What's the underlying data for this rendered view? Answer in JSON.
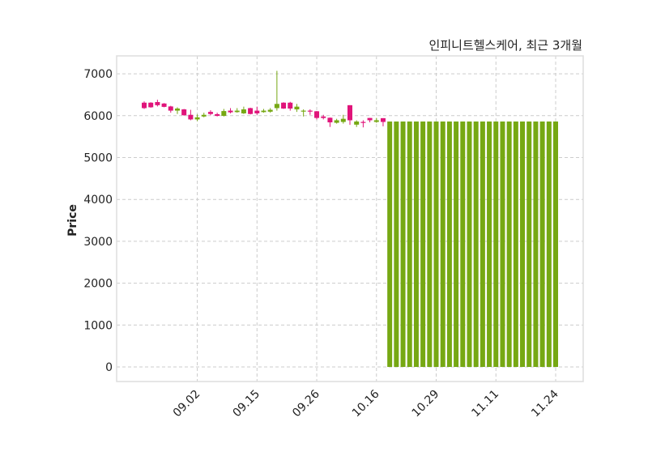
{
  "chart_data": {
    "type": "candlestick",
    "title": "인피니트헬스케어, 최근 3개월",
    "xlabel": "",
    "ylabel": "Price",
    "ylim": [
      -348,
      7427
    ],
    "xlim": [
      -4.15,
      66.15
    ],
    "grid": true,
    "yticks": [
      0,
      1000,
      2000,
      3000,
      4000,
      5000,
      6000,
      7000
    ],
    "xticks": [
      {
        "index": 8,
        "label": "09.02"
      },
      {
        "index": 17,
        "label": "09.15"
      },
      {
        "index": 26,
        "label": "09.26"
      },
      {
        "index": 35,
        "label": "10.16"
      },
      {
        "index": 44,
        "label": "10.29"
      },
      {
        "index": 53,
        "label": "11.11"
      },
      {
        "index": 62,
        "label": "11.24"
      }
    ],
    "colors": {
      "up": "#76a813",
      "down": "#e0147a",
      "grid": "#cccccc",
      "frame": "#dddddd"
    },
    "ohlc": [
      [
        6310,
        6340,
        6160,
        6180
      ],
      [
        6310,
        6320,
        6190,
        6200
      ],
      [
        6325,
        6380,
        6220,
        6250
      ],
      [
        6290,
        6300,
        6200,
        6210
      ],
      [
        6220,
        6235,
        6070,
        6120
      ],
      [
        6120,
        6200,
        6040,
        6170
      ],
      [
        6150,
        6160,
        6000,
        6010
      ],
      [
        6020,
        6140,
        5890,
        5910
      ],
      [
        5910,
        6030,
        5870,
        5960
      ],
      [
        5980,
        6070,
        5960,
        6020
      ],
      [
        6090,
        6130,
        6010,
        6040
      ],
      [
        6035,
        6070,
        5980,
        5995
      ],
      [
        5995,
        6160,
        5980,
        6110
      ],
      [
        6120,
        6180,
        6055,
        6080
      ],
      [
        6085,
        6180,
        6070,
        6120
      ],
      [
        6055,
        6215,
        6040,
        6150
      ],
      [
        6180,
        6190,
        6030,
        6040
      ],
      [
        6120,
        6215,
        6020,
        6055
      ],
      [
        6085,
        6160,
        6070,
        6120
      ],
      [
        6095,
        6180,
        6070,
        6140
      ],
      [
        6180,
        7070,
        6120,
        6280
      ],
      [
        6310,
        6320,
        6160,
        6170
      ],
      [
        6310,
        6330,
        6120,
        6170
      ],
      [
        6150,
        6280,
        6090,
        6215
      ],
      [
        6110,
        6150,
        5980,
        6120
      ],
      [
        6120,
        6150,
        6020,
        6110
      ],
      [
        6105,
        6110,
        5910,
        5945
      ],
      [
        5980,
        6020,
        5910,
        5945
      ],
      [
        5950,
        5955,
        5730,
        5840
      ],
      [
        5830,
        5925,
        5810,
        5890
      ],
      [
        5850,
        6020,
        5810,
        5925
      ],
      [
        6250,
        6250,
        5780,
        5890
      ],
      [
        5785,
        5890,
        5730,
        5860
      ],
      [
        5850,
        5890,
        5720,
        5840
      ],
      [
        5945,
        5945,
        5840,
        5890
      ],
      [
        5850,
        5945,
        5830,
        5890
      ],
      [
        5940,
        5940,
        5745,
        5850
      ],
      [
        0,
        5860,
        0,
        5860
      ],
      [
        0,
        5860,
        0,
        5860
      ],
      [
        0,
        5860,
        0,
        5860
      ],
      [
        0,
        5860,
        0,
        5860
      ],
      [
        0,
        5860,
        0,
        5860
      ],
      [
        0,
        5860,
        0,
        5860
      ],
      [
        0,
        5860,
        0,
        5860
      ],
      [
        0,
        5860,
        0,
        5860
      ],
      [
        0,
        5860,
        0,
        5860
      ],
      [
        0,
        5860,
        0,
        5860
      ],
      [
        0,
        5860,
        0,
        5860
      ],
      [
        0,
        5860,
        0,
        5860
      ],
      [
        0,
        5860,
        0,
        5860
      ],
      [
        0,
        5860,
        0,
        5860
      ],
      [
        0,
        5860,
        0,
        5860
      ],
      [
        0,
        5860,
        0,
        5860
      ],
      [
        0,
        5860,
        0,
        5860
      ],
      [
        0,
        5860,
        0,
        5860
      ],
      [
        0,
        5860,
        0,
        5860
      ],
      [
        0,
        5860,
        0,
        5860
      ],
      [
        0,
        5860,
        0,
        5860
      ],
      [
        0,
        5860,
        0,
        5860
      ],
      [
        0,
        5860,
        0,
        5860
      ],
      [
        0,
        5860,
        0,
        5860
      ],
      [
        0,
        5860,
        0,
        5860
      ],
      [
        0,
        5860,
        0,
        5860
      ]
    ]
  }
}
